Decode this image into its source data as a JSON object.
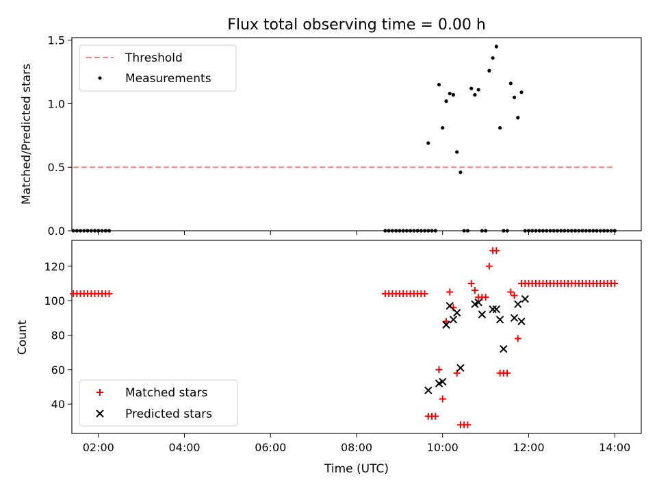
{
  "chart_data": [
    {
      "type": "scatter",
      "title": "Flux total observing time = 0.00 h",
      "xlabel": "",
      "ylabel": "Matched/Predicted stars",
      "xlim": [
        "01:23",
        "14:37"
      ],
      "ylim": [
        0,
        1.52
      ],
      "yticks": [
        "0.0",
        "0.5",
        "1.0",
        "1.5"
      ],
      "legend_placement": "top-left",
      "threshold": {
        "name": "Threshold",
        "value": 0.5,
        "x_range": [
          "01:25",
          "14:00"
        ],
        "color": "#ff7f7f",
        "style": "dashed"
      },
      "series": [
        {
          "name": "Measurements",
          "color": "#000000",
          "marker": "dot",
          "x": [
            "01:25",
            "01:30",
            "01:35",
            "01:40",
            "01:45",
            "01:50",
            "01:55",
            "02:00",
            "02:05",
            "02:10",
            "02:15",
            "08:40",
            "08:45",
            "08:50",
            "08:55",
            "09:00",
            "09:05",
            "09:10",
            "09:15",
            "09:20",
            "09:25",
            "09:30",
            "09:35",
            "09:40",
            "09:45",
            "09:50",
            "09:40",
            "09:55",
            "10:00",
            "10:05",
            "10:10",
            "10:15",
            "10:20",
            "10:25",
            "10:30",
            "10:35",
            "10:40",
            "10:45",
            "10:50",
            "10:55",
            "11:00",
            "11:05",
            "11:10",
            "11:15",
            "11:20",
            "11:25",
            "11:30",
            "11:35",
            "11:40",
            "11:45",
            "11:50",
            "11:55",
            "12:00",
            "12:05",
            "12:10",
            "12:15",
            "12:20",
            "12:25",
            "12:30",
            "12:35",
            "12:40",
            "12:45",
            "12:50",
            "12:55",
            "13:00",
            "13:05",
            "13:10",
            "13:15",
            "13:20",
            "13:25",
            "13:30",
            "13:35",
            "13:40",
            "13:45",
            "13:50",
            "13:55",
            "14:00"
          ],
          "y": [
            0,
            0,
            0,
            0,
            0,
            0,
            0,
            0,
            0,
            0,
            0,
            0,
            0,
            0,
            0,
            0,
            0,
            0,
            0,
            0,
            0,
            0,
            0,
            0,
            0,
            0,
            0.69,
            1.15,
            0.81,
            1.02,
            1.08,
            1.07,
            0.62,
            0.46,
            0,
            0,
            1.12,
            1.07,
            1.11,
            0,
            0,
            1.26,
            1.36,
            1.45,
            0.81,
            0,
            0,
            1.16,
            1.05,
            0.89,
            1.09,
            0,
            0,
            0,
            0,
            0,
            0,
            0,
            0,
            0,
            0,
            0,
            0,
            0,
            0,
            0,
            0,
            0,
            0,
            0,
            0,
            0,
            0,
            0,
            0,
            0,
            0
          ]
        }
      ]
    },
    {
      "type": "scatter",
      "title": "",
      "xlabel": "Time (UTC)",
      "ylabel": "Count",
      "xlim": [
        "01:23",
        "14:37"
      ],
      "ylim": [
        23,
        135
      ],
      "xticks": [
        "02:00",
        "04:00",
        "06:00",
        "08:00",
        "10:00",
        "12:00",
        "14:00"
      ],
      "yticks": [
        "40",
        "60",
        "80",
        "100",
        "120"
      ],
      "legend_placement": "bottom-left",
      "series": [
        {
          "name": "Matched stars",
          "color": "#ff0000",
          "marker": "plus",
          "x": [
            "01:25",
            "01:30",
            "01:35",
            "01:40",
            "01:45",
            "01:50",
            "01:55",
            "02:00",
            "02:05",
            "02:10",
            "02:15",
            "08:40",
            "08:45",
            "08:50",
            "08:55",
            "09:00",
            "09:05",
            "09:10",
            "09:15",
            "09:20",
            "09:25",
            "09:30",
            "09:35",
            "09:40",
            "09:45",
            "09:50",
            "09:55",
            "10:00",
            "10:05",
            "10:10",
            "10:15",
            "10:20",
            "10:25",
            "10:30",
            "10:35",
            "10:40",
            "10:45",
            "10:50",
            "10:55",
            "11:00",
            "11:05",
            "11:10",
            "11:15",
            "11:20",
            "11:25",
            "11:30",
            "11:35",
            "11:40",
            "11:45",
            "11:50",
            "11:55",
            "12:00",
            "12:05",
            "12:10",
            "12:15",
            "12:20",
            "12:25",
            "12:30",
            "12:35",
            "12:40",
            "12:45",
            "12:50",
            "12:55",
            "13:00",
            "13:05",
            "13:10",
            "13:15",
            "13:20",
            "13:25",
            "13:30",
            "13:35",
            "13:40",
            "13:45",
            "13:50",
            "13:55",
            "14:00"
          ],
          "y": [
            104,
            104,
            104,
            104,
            104,
            104,
            104,
            104,
            104,
            104,
            104,
            104,
            104,
            104,
            104,
            104,
            104,
            104,
            104,
            104,
            104,
            104,
            104,
            33,
            33,
            33,
            60,
            43,
            88,
            105,
            96,
            58,
            28,
            28,
            28,
            110,
            106,
            102,
            102,
            102,
            120,
            129,
            129,
            58,
            58,
            58,
            105,
            103,
            78,
            110,
            110,
            110,
            110,
            110,
            110,
            110,
            110,
            110,
            110,
            110,
            110,
            110,
            110,
            110,
            110,
            110,
            110,
            110,
            110,
            110,
            110,
            110,
            110,
            110,
            110,
            110
          ]
        },
        {
          "name": "Predicted stars",
          "color": "#000000",
          "marker": "x",
          "x": [
            "09:40",
            "09:55",
            "10:00",
            "10:05",
            "10:10",
            "10:15",
            "10:20",
            "10:25",
            "10:45",
            "10:50",
            "10:55",
            "11:10",
            "11:15",
            "11:20",
            "11:25",
            "11:40",
            "11:45",
            "11:50",
            "11:55"
          ],
          "y": [
            48,
            52,
            53,
            86,
            97,
            89,
            93,
            61,
            98,
            99,
            92,
            95,
            95,
            89,
            72,
            90,
            98,
            88,
            101
          ]
        }
      ]
    }
  ]
}
